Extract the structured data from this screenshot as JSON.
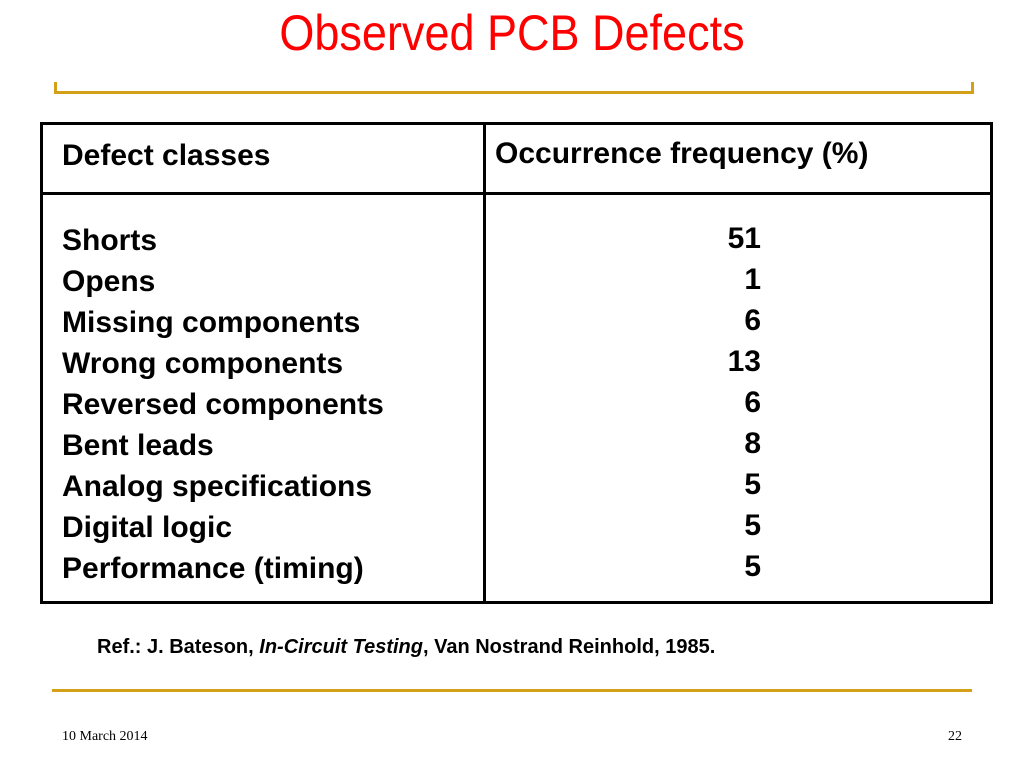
{
  "slide": {
    "title": "Observed PCB Defects",
    "title_color": "#ff0000",
    "accent_color": "#d4a017"
  },
  "table": {
    "header_class": "Defect classes",
    "header_frequency": "Occurrence frequency (%)",
    "rows": [
      {
        "class": "Shorts",
        "frequency": "51"
      },
      {
        "class": "Opens",
        "frequency": "1"
      },
      {
        "class": "Missing components",
        "frequency": "6"
      },
      {
        "class": "Wrong components",
        "frequency": "13"
      },
      {
        "class": "Reversed components",
        "frequency": "6"
      },
      {
        "class": "Bent leads",
        "frequency": "8"
      },
      {
        "class": "Analog specifications",
        "frequency": "5"
      },
      {
        "class": "Digital logic",
        "frequency": "5"
      },
      {
        "class": "Performance (timing)",
        "frequency": "5"
      }
    ]
  },
  "reference": {
    "prefix": "Ref.: J. Bateson, ",
    "book": "In-Circuit Testing",
    "suffix": ", Van Nostrand Reinhold, 1985."
  },
  "footer": {
    "date": "10 March 2014",
    "page": "22"
  }
}
